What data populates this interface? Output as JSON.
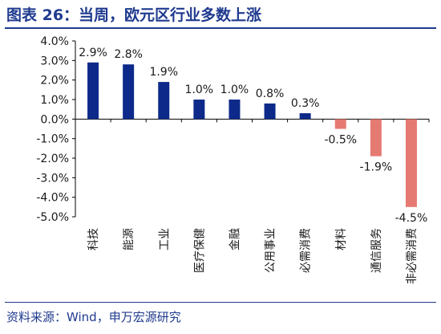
{
  "header": {
    "title": "图表 26：当周，欧元区行业多数上涨"
  },
  "footer": {
    "source": "资料来源：Wind，申万宏源研究"
  },
  "colors": {
    "title": "#1f3a8f",
    "positive_bar": "#0d2a8a",
    "negative_bar": "#e57a72",
    "axis": "#000000",
    "text": "#1a1a1a"
  },
  "chart_data": {
    "type": "bar",
    "title": "",
    "xlabel": "",
    "ylabel": "",
    "categories": [
      "科技",
      "能源",
      "工业",
      "医疗保健",
      "金融",
      "公用事业",
      "必需消费",
      "材料",
      "通信服务",
      "非必需消费"
    ],
    "values": [
      2.9,
      2.8,
      1.9,
      1.0,
      1.0,
      0.8,
      0.3,
      -0.5,
      -1.9,
      -4.5
    ],
    "data_labels": [
      "2.9%",
      "2.8%",
      "1.9%",
      "1.0%",
      "1.0%",
      "0.8%",
      "0.3%",
      "-0.5%",
      "-1.9%",
      "-4.5%"
    ],
    "ylim": [
      -5.0,
      4.0
    ],
    "yticks": [
      4.0,
      3.0,
      2.0,
      1.0,
      0.0,
      -1.0,
      -2.0,
      -3.0,
      -4.0,
      -5.0
    ],
    "ytick_labels": [
      "4.0%",
      "3.0%",
      "2.0%",
      "1.0%",
      "0.0%",
      "-1.0%",
      "-2.0%",
      "-3.0%",
      "-4.0%",
      "-5.0%"
    ],
    "grid": false,
    "legend": "none"
  }
}
